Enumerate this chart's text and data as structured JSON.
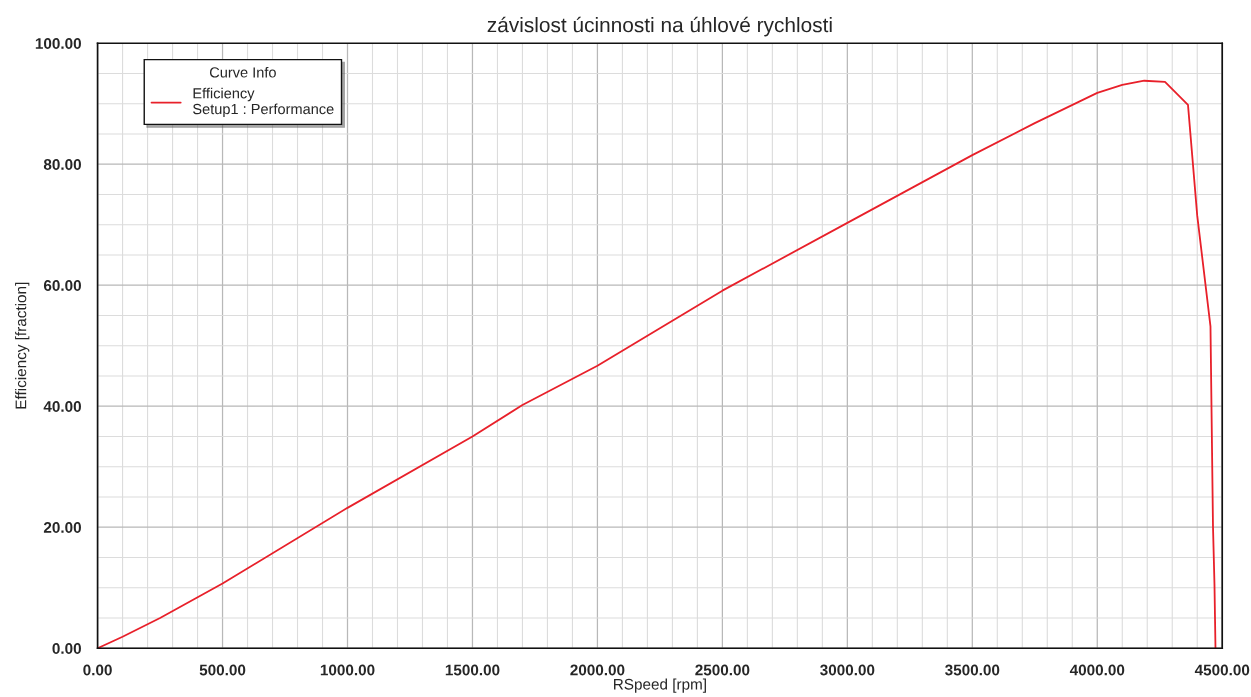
{
  "chart_data": {
    "type": "line",
    "title": "závislost úcinnosti na úhlové rychlosti",
    "xlabel": "RSpeed [rpm]",
    "ylabel": "Efficiency [fraction]",
    "legend_title": "Curve Info",
    "x": [
      0,
      100,
      250,
      500,
      1000,
      1500,
      1700,
      2000,
      2500,
      3000,
      3500,
      3750,
      4000,
      4100,
      4188,
      4271,
      4363,
      4400,
      4453,
      4463,
      4469,
      4473
    ],
    "series": [
      {
        "name": "Efficiency\nSetup1 : Performance",
        "color": "#e8202a",
        "values": [
          0,
          1.9,
          5.0,
          10.7,
          23.2,
          35.0,
          40.2,
          46.7,
          59.1,
          70.3,
          81.5,
          86.8,
          91.8,
          93.1,
          93.8,
          93.6,
          89.8,
          71.5,
          53.2,
          20.2,
          10.5,
          0
        ]
      }
    ],
    "xlim": [
      0,
      4500
    ],
    "ylim": [
      0,
      100
    ],
    "xticks": [
      {
        "value": 0,
        "label": "0.00"
      },
      {
        "value": 500,
        "label": "500.00"
      },
      {
        "value": 1000,
        "label": "1000.00"
      },
      {
        "value": 1500,
        "label": "1500.00"
      },
      {
        "value": 2000,
        "label": "2000.00"
      },
      {
        "value": 2500,
        "label": "2500.00"
      },
      {
        "value": 3000,
        "label": "3000.00"
      },
      {
        "value": 3500,
        "label": "3500.00"
      },
      {
        "value": 4000,
        "label": "4000.00"
      },
      {
        "value": 4500,
        "label": "4500.00"
      }
    ],
    "yticks": [
      {
        "value": 0,
        "label": "0.00"
      },
      {
        "value": 20,
        "label": "20.00"
      },
      {
        "value": 40,
        "label": "40.00"
      },
      {
        "value": 60,
        "label": "60.00"
      },
      {
        "value": 80,
        "label": "80.00"
      },
      {
        "value": 100,
        "label": "100.00"
      }
    ],
    "grid": true,
    "legend": "top left",
    "marker": "none",
    "line_style": "solid"
  }
}
